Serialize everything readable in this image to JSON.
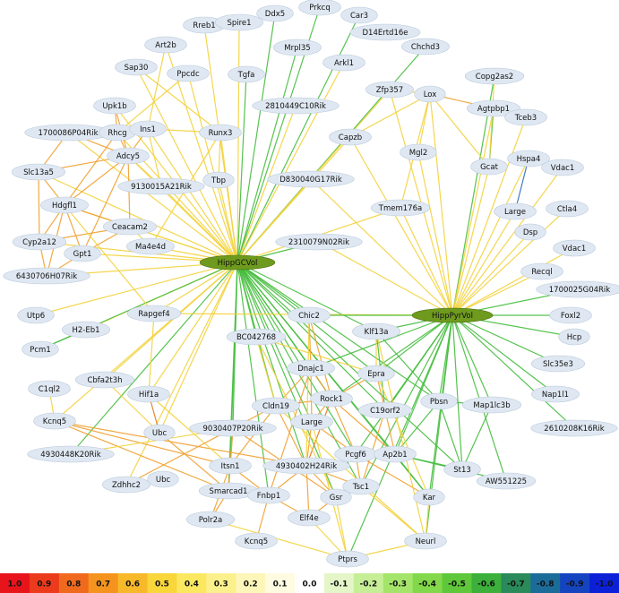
{
  "nodes": [
    {
      "label": "Rreb1"
    },
    {
      "label": "Spire1"
    },
    {
      "label": "Ddx5"
    },
    {
      "label": "Prkcq"
    },
    {
      "label": "Car3"
    },
    {
      "label": "D14Ertd16e"
    },
    {
      "label": "Chchd3"
    },
    {
      "label": "Art2b"
    },
    {
      "label": "Mrpl35"
    },
    {
      "label": "Sap30"
    },
    {
      "label": "Ppcdc"
    },
    {
      "label": "Tgfa"
    },
    {
      "label": "Arkl1"
    },
    {
      "label": "Zfp357"
    },
    {
      "label": "Copg2as2"
    },
    {
      "label": "Lox"
    },
    {
      "label": "Agtpbp1"
    },
    {
      "label": "Upk1b"
    },
    {
      "label": "2810449C10Rik"
    },
    {
      "label": "1700086P04Rik"
    },
    {
      "label": "Rhcg"
    },
    {
      "label": "Ins1"
    },
    {
      "label": "Runx3"
    },
    {
      "label": "Tceb3"
    },
    {
      "label": "Capzb"
    },
    {
      "label": "Mgl2"
    },
    {
      "label": "Adcy5"
    },
    {
      "label": "Slc13a5"
    },
    {
      "label": "9130015A21Rik"
    },
    {
      "label": "Tbp"
    },
    {
      "label": "D830040G17Rik"
    },
    {
      "label": "Gcat"
    },
    {
      "label": "Hspa4"
    },
    {
      "label": "Vdac1"
    },
    {
      "label": "Hdgfl1"
    },
    {
      "label": "Tmem176a"
    },
    {
      "label": "Large"
    },
    {
      "label": "Ceacam2"
    },
    {
      "label": "Ctla4"
    },
    {
      "label": "Dsp"
    },
    {
      "label": "Cyp2a12"
    },
    {
      "label": "Ma4e4d"
    },
    {
      "label": "2310079N02Rik"
    },
    {
      "label": "Gpt1"
    },
    {
      "label": "Vdac1"
    },
    {
      "label": "HippGCVol"
    },
    {
      "label": "6430706H07Rik"
    },
    {
      "label": "Recql"
    },
    {
      "label": "1700025G04Rik"
    },
    {
      "label": "Utp6"
    },
    {
      "label": "Rapgef4"
    },
    {
      "label": "HippPyrVol"
    },
    {
      "label": "Foxl2"
    },
    {
      "label": "H2-Eb1"
    },
    {
      "label": "Chic2"
    },
    {
      "label": "BC042768"
    },
    {
      "label": "Klf13a"
    },
    {
      "label": "Hcp"
    },
    {
      "label": "Pcm1"
    },
    {
      "label": "Dnajc1"
    },
    {
      "label": "Slc35e3"
    },
    {
      "label": "Epra"
    },
    {
      "label": "Cbfa2t3h"
    },
    {
      "label": "C1ql2"
    },
    {
      "label": "Hif1a"
    },
    {
      "label": "Rock1"
    },
    {
      "label": "Nap1l1"
    },
    {
      "label": "Cldn19"
    },
    {
      "label": "Pbsn"
    },
    {
      "label": "C19orf2"
    },
    {
      "label": "Map1lc3b"
    },
    {
      "label": "Large"
    },
    {
      "label": "Kcnq5"
    },
    {
      "label": "9030407P20Rik"
    },
    {
      "label": "2610208K16Rik"
    },
    {
      "label": "Ubc"
    },
    {
      "label": "4930448K20Rik"
    },
    {
      "label": "Pcgf6"
    },
    {
      "label": "Ap2b1"
    },
    {
      "label": "Itsn1"
    },
    {
      "label": "4930402H24Rik"
    },
    {
      "label": "St13"
    },
    {
      "label": "Zdhhc2"
    },
    {
      "label": "Ubc"
    },
    {
      "label": "AW551225"
    },
    {
      "label": "Tsc1"
    },
    {
      "label": "Smarcad1"
    },
    {
      "label": "Fnbp1"
    },
    {
      "label": "Gsr"
    },
    {
      "label": "Kar"
    },
    {
      "label": "Elf4e"
    },
    {
      "label": "Polr2a"
    },
    {
      "label": "Neurl"
    },
    {
      "label": "Kcnq5"
    },
    {
      "label": "Ptprs"
    }
  ],
  "color_scale": {
    "labels": [
      "1.0",
      "0.9",
      "0.8",
      "0.7",
      "0.6",
      "0.5",
      "0.4",
      "0.3",
      "0.2",
      "0.1",
      "0.0",
      "-0.1",
      "-0.2",
      "-0.3",
      "-0.4",
      "-0.5",
      "-0.6",
      "-0.7",
      "-0.8",
      "-0.9",
      "-1.0"
    ],
    "colors": [
      "#e8141c",
      "#ec3a1c",
      "#f06a1e",
      "#f4941e",
      "#f7b82a",
      "#f9d63a",
      "#fbe860",
      "#fcf08c",
      "#fdf6b8",
      "#fefbe0",
      "#ffffff",
      "#e4f6c8",
      "#c6ee96",
      "#a4e46a",
      "#82d84a",
      "#5ec83a",
      "#3cb03a",
      "#2a8a5a",
      "#1c6c9a",
      "#1444c0",
      "#0c20d8"
    ]
  }
}
